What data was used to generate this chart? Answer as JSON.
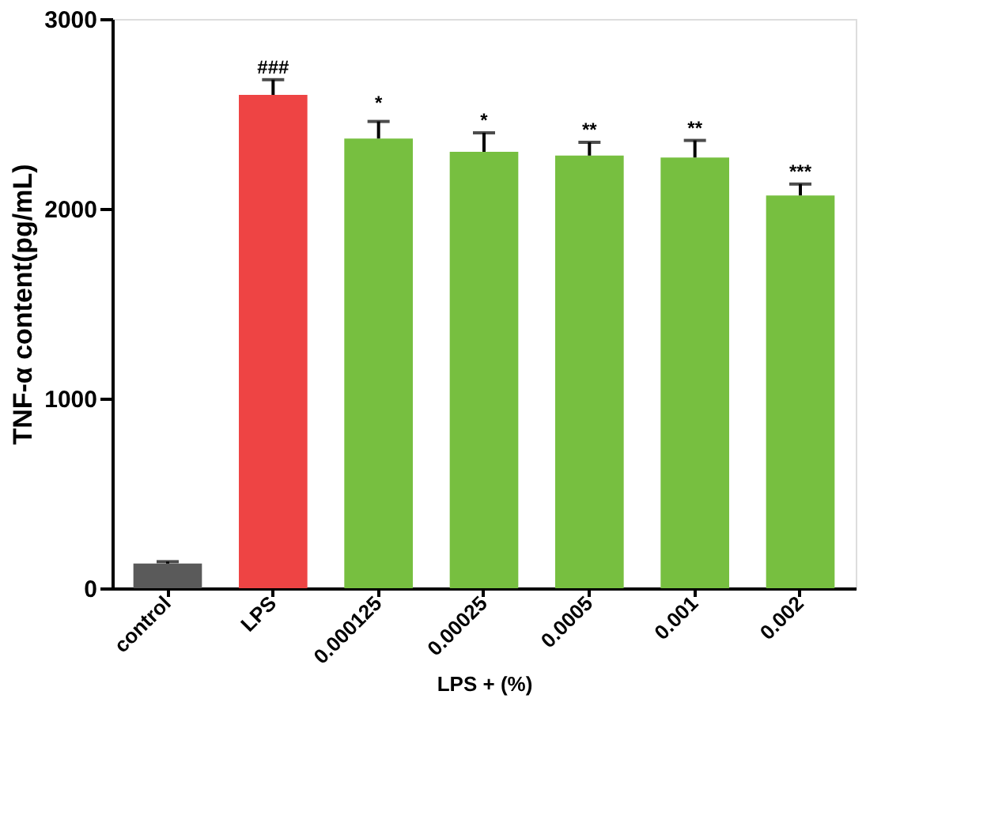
{
  "chart_data": {
    "type": "bar",
    "ylabel": "TNF-α content(pg/mL)",
    "xlabel": "LPS + (%)",
    "categories": [
      "control",
      "LPS",
      "0.000125",
      "0.00025",
      "0.0005",
      "0.001",
      "0.002"
    ],
    "values": [
      130,
      2600,
      2370,
      2300,
      2280,
      2270,
      2070
    ],
    "errors": [
      10,
      80,
      90,
      100,
      70,
      90,
      60
    ],
    "colors": [
      "#5a5a5a",
      "#ee4444",
      "#77bf40",
      "#77bf40",
      "#77bf40",
      "#77bf40",
      "#77bf40"
    ],
    "ylim": [
      0,
      3000
    ],
    "yticks": [
      0,
      1000,
      2000,
      3000
    ],
    "grid": false,
    "annotations": [
      {
        "text": "###",
        "x": "LPS",
        "y": 2680
      },
      {
        "text": "*",
        "x": "0.000125",
        "y": 2490
      },
      {
        "text": "*",
        "x": "0.00025",
        "y": 2400
      },
      {
        "text": "**",
        "x": "0.0005",
        "y": 2350
      },
      {
        "text": "**",
        "x": "0.001",
        "y": 2360
      },
      {
        "text": "***",
        "x": "0.002",
        "y": 2130
      }
    ]
  }
}
